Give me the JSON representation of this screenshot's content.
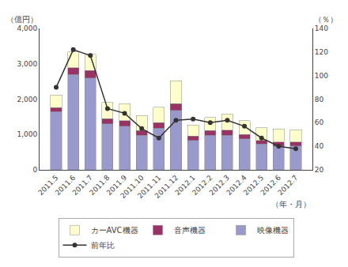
{
  "chart_data": {
    "type": "bar",
    "stacked": true,
    "categories": [
      "2011.5",
      "2011.6",
      "2011.7",
      "2011.8",
      "2011.9",
      "2011.10",
      "2011.11",
      "2011.12",
      "2012.1",
      "2012.2",
      "2012.3",
      "2012.4",
      "2012.5",
      "2012.6",
      "2012.7"
    ],
    "series": [
      {
        "name": "映像機器",
        "color": "#9999cc",
        "values": [
          1650,
          2700,
          2600,
          1300,
          1240,
          980,
          1180,
          1680,
          830,
          980,
          980,
          880,
          730,
          670,
          680
        ]
      },
      {
        "name": "音声機器",
        "color": "#993366",
        "values": [
          110,
          190,
          210,
          150,
          150,
          130,
          150,
          195,
          130,
          130,
          145,
          125,
          105,
          115,
          105
        ]
      },
      {
        "name": "カーAVC機器",
        "color": "#ffffcc",
        "values": [
          360,
          440,
          460,
          450,
          480,
          425,
          445,
          640,
          310,
          370,
          460,
          390,
          360,
          370,
          350
        ]
      },
      {
        "name": "前年比",
        "type": "line",
        "axis": "y2",
        "color": "#333333",
        "marker": "circle",
        "values": [
          90,
          122,
          117,
          72,
          68,
          55,
          47,
          62,
          63,
          60,
          62,
          57,
          47,
          40,
          38
        ]
      }
    ],
    "ylabel": "（億円）",
    "y2label": "（％）",
    "xlabel": "（年・月）",
    "ylim": [
      0,
      4000
    ],
    "yticks": [
      0,
      {
        "value": 1000,
        "label": "1,000"
      },
      {
        "value": 2000,
        "label": "2,000"
      },
      {
        "value": 3000,
        "label": "3,000"
      },
      {
        "value": 4000,
        "label": "4,000"
      }
    ],
    "y2lim": [
      20,
      140
    ],
    "y2ticks": [
      20,
      40,
      60,
      80,
      100,
      120,
      140
    ],
    "grid": false,
    "legend": "bottom"
  }
}
